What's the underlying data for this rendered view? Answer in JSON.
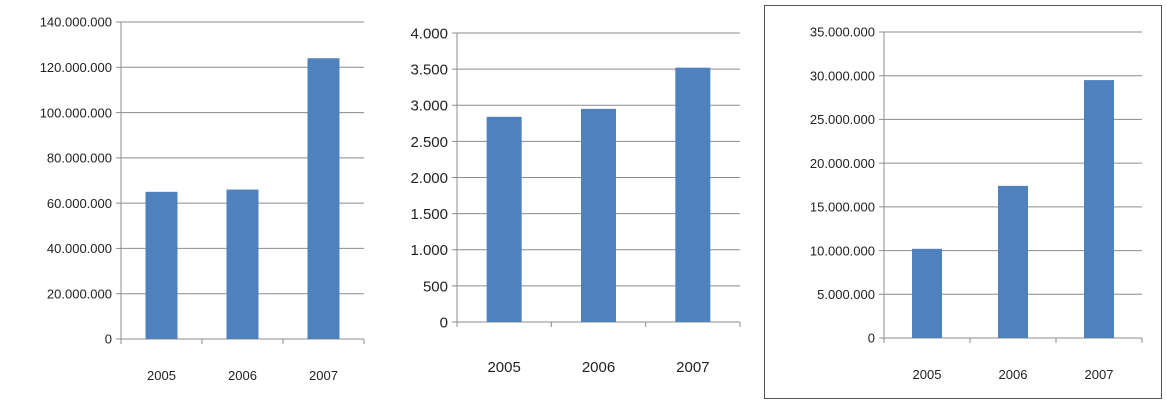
{
  "charts": {
    "bar_color": "#4f81bd",
    "grid_color": "#8c8c8c"
  },
  "chart_data": [
    {
      "type": "bar",
      "categories": [
        "2005",
        "2006",
        "2007"
      ],
      "values": [
        65000000,
        66000000,
        124000000
      ],
      "yticks": [
        0,
        20000000,
        40000000,
        60000000,
        80000000,
        100000000,
        120000000,
        140000000
      ],
      "ytick_labels": [
        "0",
        "20.000.000",
        "40.000.000",
        "60.000.000",
        "80.000.000",
        "100.000.000",
        "120.000.000",
        "140.000.000"
      ],
      "ylim": [
        0,
        140000000
      ],
      "grid": true,
      "legend": "none"
    },
    {
      "type": "bar",
      "categories": [
        "2005",
        "2006",
        "2007"
      ],
      "values": [
        2840,
        2950,
        3520
      ],
      "yticks": [
        0,
        500,
        1000,
        1500,
        2000,
        2500,
        3000,
        3500,
        4000
      ],
      "ytick_labels": [
        "0",
        "500",
        "1.000",
        "1.500",
        "2.000",
        "2.500",
        "3.000",
        "3.500",
        "4.000"
      ],
      "ylim": [
        0,
        4000
      ],
      "grid": true,
      "legend": "none"
    },
    {
      "type": "bar",
      "categories": [
        "2005",
        "2006",
        "2007"
      ],
      "values": [
        10200000,
        17400000,
        29500000
      ],
      "yticks": [
        0,
        5000000,
        10000000,
        15000000,
        20000000,
        25000000,
        30000000,
        35000000
      ],
      "ytick_labels": [
        "0",
        "5.000.000",
        "10.000.000",
        "15.000.000",
        "20.000.000",
        "25.000.000",
        "30.000.000",
        "35.000.000"
      ],
      "ylim": [
        0,
        35000000
      ],
      "grid": true,
      "legend": "none"
    }
  ]
}
